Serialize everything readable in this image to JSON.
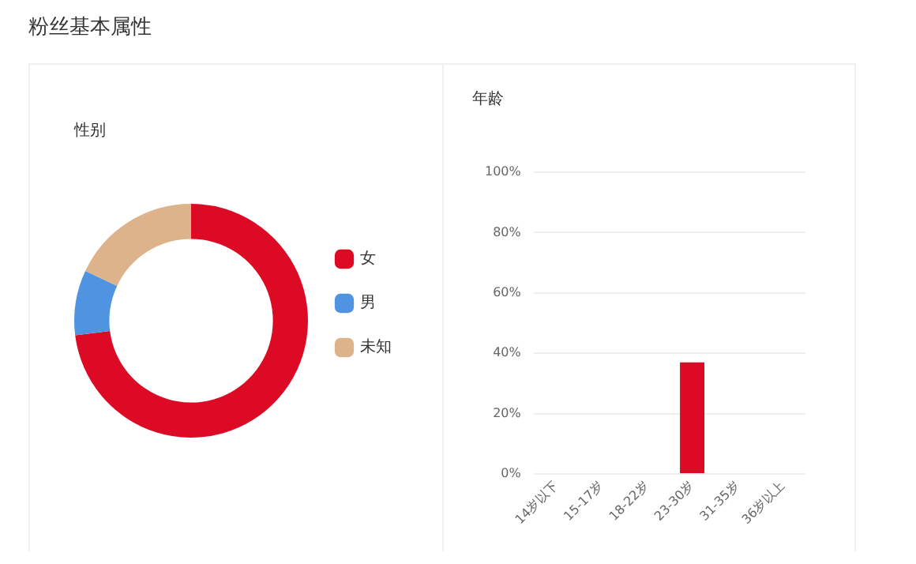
{
  "chart_data": [
    {
      "type": "donut",
      "title": "性别",
      "annotations": [
        "粉丝基本属性"
      ],
      "categories": [
        "女",
        "男",
        "未知"
      ],
      "values": [
        73,
        9,
        18
      ],
      "colors": [
        "#dc0a24",
        "#4f94e0",
        "#dcb38b"
      ],
      "legend": "right"
    },
    {
      "type": "bar",
      "title": "年龄",
      "categories": [
        "14岁以下",
        "15-17岁",
        "18-22岁",
        "23-30岁",
        "31-35岁",
        "36岁以上"
      ],
      "values": [
        0,
        0,
        0,
        37,
        0,
        0
      ],
      "color": "#dc0a24",
      "ylim": [
        0,
        100
      ],
      "yticks": [
        {
          "value": 0,
          "label": "0%"
        },
        {
          "value": 20,
          "label": "20%"
        },
        {
          "value": 40,
          "label": "40%"
        },
        {
          "value": 60,
          "label": "60%"
        },
        {
          "value": 80,
          "label": "80%"
        },
        {
          "value": 100,
          "label": "100%"
        }
      ],
      "grid": "y"
    }
  ]
}
